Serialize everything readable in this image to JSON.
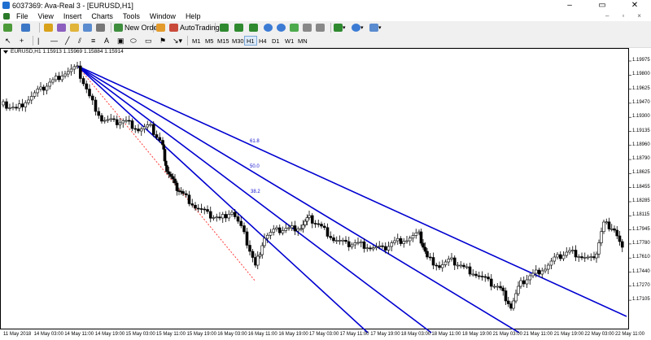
{
  "window": {
    "title": "6037369: Ava-Real 3 - [EURUSD,H1]",
    "minimize": "–",
    "restore": "▭",
    "close": "✕"
  },
  "menu": [
    "File",
    "View",
    "Insert",
    "Charts",
    "Tools",
    "Window",
    "Help"
  ],
  "toolbar": {
    "new_order": "New Order",
    "autotrading": "AutoTrading"
  },
  "timeframes": [
    "M1",
    "M5",
    "M15",
    "M30",
    "H1",
    "H4",
    "D1",
    "W1",
    "MN"
  ],
  "active_timeframe": "H1",
  "chart": {
    "info": "EURUSD,H1  1.15913 1.15969 1.15884 1.15914",
    "price_labels": [
      "1.19975",
      "1.19800",
      "1.19625",
      "1.19470",
      "1.19300",
      "1.19135",
      "1.18960",
      "1.18790",
      "1.18625",
      "1.18455",
      "1.18285",
      "1.18115",
      "1.17945",
      "1.17780",
      "1.17610",
      "1.17440",
      "1.17270",
      "1.17105"
    ],
    "time_labels": [
      "11 May 2018",
      "14 May 03:00",
      "14 May 11:00",
      "14 May 19:00",
      "15 May 03:00",
      "15 May 11:00",
      "15 May 19:00",
      "16 May 03:00",
      "16 May 11:00",
      "16 May 19:00",
      "17 May 03:00",
      "17 May 11:00",
      "17 May 19:00",
      "18 May 03:00",
      "18 May 11:00",
      "18 May 19:00",
      "21 May 03:00",
      "21 May 11:00",
      "21 May 19:00",
      "22 May 03:00",
      "22 May 11:00"
    ],
    "fan_levels": [
      "61.8",
      "50.0",
      "38.2"
    ],
    "colors": {
      "fan": "#0000d0",
      "trend": "#ff4040",
      "candle": "#000000"
    }
  }
}
